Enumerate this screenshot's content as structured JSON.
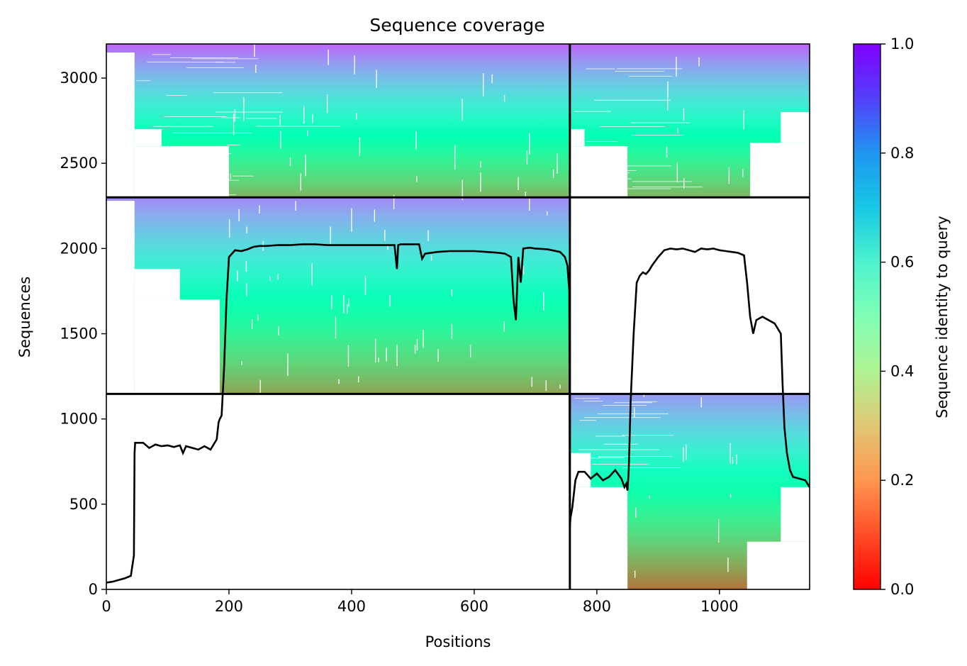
{
  "chart_data": {
    "type": "heatmap",
    "title": "Sequence coverage",
    "xlabel": "Positions",
    "ylabel": "Sequences",
    "xlim": [
      0,
      1147
    ],
    "ylim": [
      0,
      3200
    ],
    "xticks": [
      0,
      200,
      400,
      600,
      800,
      1000
    ],
    "yticks": [
      0,
      500,
      1000,
      1500,
      2000,
      2500,
      3000
    ],
    "colormap": "rainbow_r",
    "colorbar": {
      "label": "Sequence identity to query",
      "range": [
        0.0,
        1.0
      ],
      "ticks": [
        "0.0",
        "0.2",
        "0.4",
        "0.6",
        "0.8",
        "1.0"
      ]
    },
    "chain_boundaries": {
      "x": [
        756
      ],
      "y": [
        2300,
        1147
      ]
    },
    "blocks": [
      {
        "name": "chain-A-paired-top",
        "x_range": [
          0,
          756
        ],
        "y_range": [
          2300,
          3200
        ],
        "identity_bottom": 0.25,
        "identity_top": 0.87
      },
      {
        "name": "chain-B-paired-top",
        "x_range": [
          756,
          1147
        ],
        "y_range": [
          2300,
          3200
        ],
        "identity_bottom": 0.25,
        "identity_top": 0.87
      },
      {
        "name": "chain-A-unpaired",
        "x_range": [
          0,
          756
        ],
        "y_range": [
          1147,
          2300
        ],
        "identity_bottom": 0.22,
        "identity_top": 0.82
      },
      {
        "name": "chain-B-unpaired",
        "x_range": [
          756,
          1147
        ],
        "y_range": [
          0,
          1147
        ],
        "identity_bottom": 0.15,
        "identity_top": 0.8
      }
    ],
    "coverage_line": {
      "color": "#000000",
      "x": [
        0,
        10,
        20,
        30,
        40,
        45,
        46,
        47,
        48,
        50,
        60,
        70,
        75,
        80,
        90,
        100,
        110,
        120,
        125,
        130,
        140,
        150,
        160,
        170,
        180,
        183,
        185,
        188,
        192,
        196,
        200,
        210,
        220,
        230,
        240,
        250,
        260,
        280,
        300,
        320,
        340,
        360,
        380,
        400,
        420,
        440,
        460,
        470,
        474,
        476,
        480,
        500,
        510,
        515,
        520,
        540,
        560,
        580,
        600,
        620,
        640,
        650,
        655,
        660,
        664,
        668,
        672,
        676,
        680,
        690,
        700,
        720,
        740,
        748,
        752,
        755,
        756,
        757,
        760,
        765,
        770,
        780,
        790,
        800,
        810,
        820,
        830,
        840,
        845,
        848,
        850,
        852,
        855,
        860,
        865,
        870,
        875,
        880,
        885,
        890,
        900,
        910,
        920,
        930,
        940,
        950,
        960,
        970,
        980,
        990,
        1000,
        1010,
        1020,
        1030,
        1040,
        1045,
        1050,
        1055,
        1060,
        1070,
        1080,
        1090,
        1100,
        1103,
        1106,
        1110,
        1115,
        1120,
        1130,
        1140,
        1147
      ],
      "y": [
        40,
        45,
        55,
        65,
        80,
        200,
        800,
        860,
        860,
        860,
        860,
        830,
        840,
        850,
        840,
        845,
        835,
        845,
        800,
        840,
        830,
        820,
        840,
        820,
        880,
        980,
        1000,
        1020,
        1300,
        1700,
        1950,
        1990,
        1985,
        1995,
        2010,
        2015,
        2015,
        2020,
        2020,
        2025,
        2025,
        2020,
        2020,
        2020,
        2020,
        2020,
        2020,
        2020,
        1880,
        2020,
        2025,
        2025,
        2025,
        1940,
        1970,
        1980,
        1985,
        1985,
        1985,
        1980,
        1975,
        1970,
        1960,
        1950,
        1700,
        1580,
        1950,
        1800,
        2000,
        2005,
        2000,
        1995,
        1980,
        1950,
        1900,
        1750,
        370,
        420,
        480,
        640,
        690,
        690,
        650,
        680,
        640,
        660,
        700,
        650,
        600,
        620,
        580,
        700,
        1100,
        1500,
        1800,
        1840,
        1860,
        1850,
        1870,
        1900,
        1950,
        1990,
        2000,
        1995,
        2000,
        1990,
        1980,
        2000,
        1995,
        2000,
        1990,
        1985,
        1980,
        1975,
        1960,
        1800,
        1600,
        1500,
        1580,
        1600,
        1580,
        1560,
        1500,
        1200,
        950,
        800,
        700,
        660,
        650,
        640,
        600
      ]
    }
  }
}
